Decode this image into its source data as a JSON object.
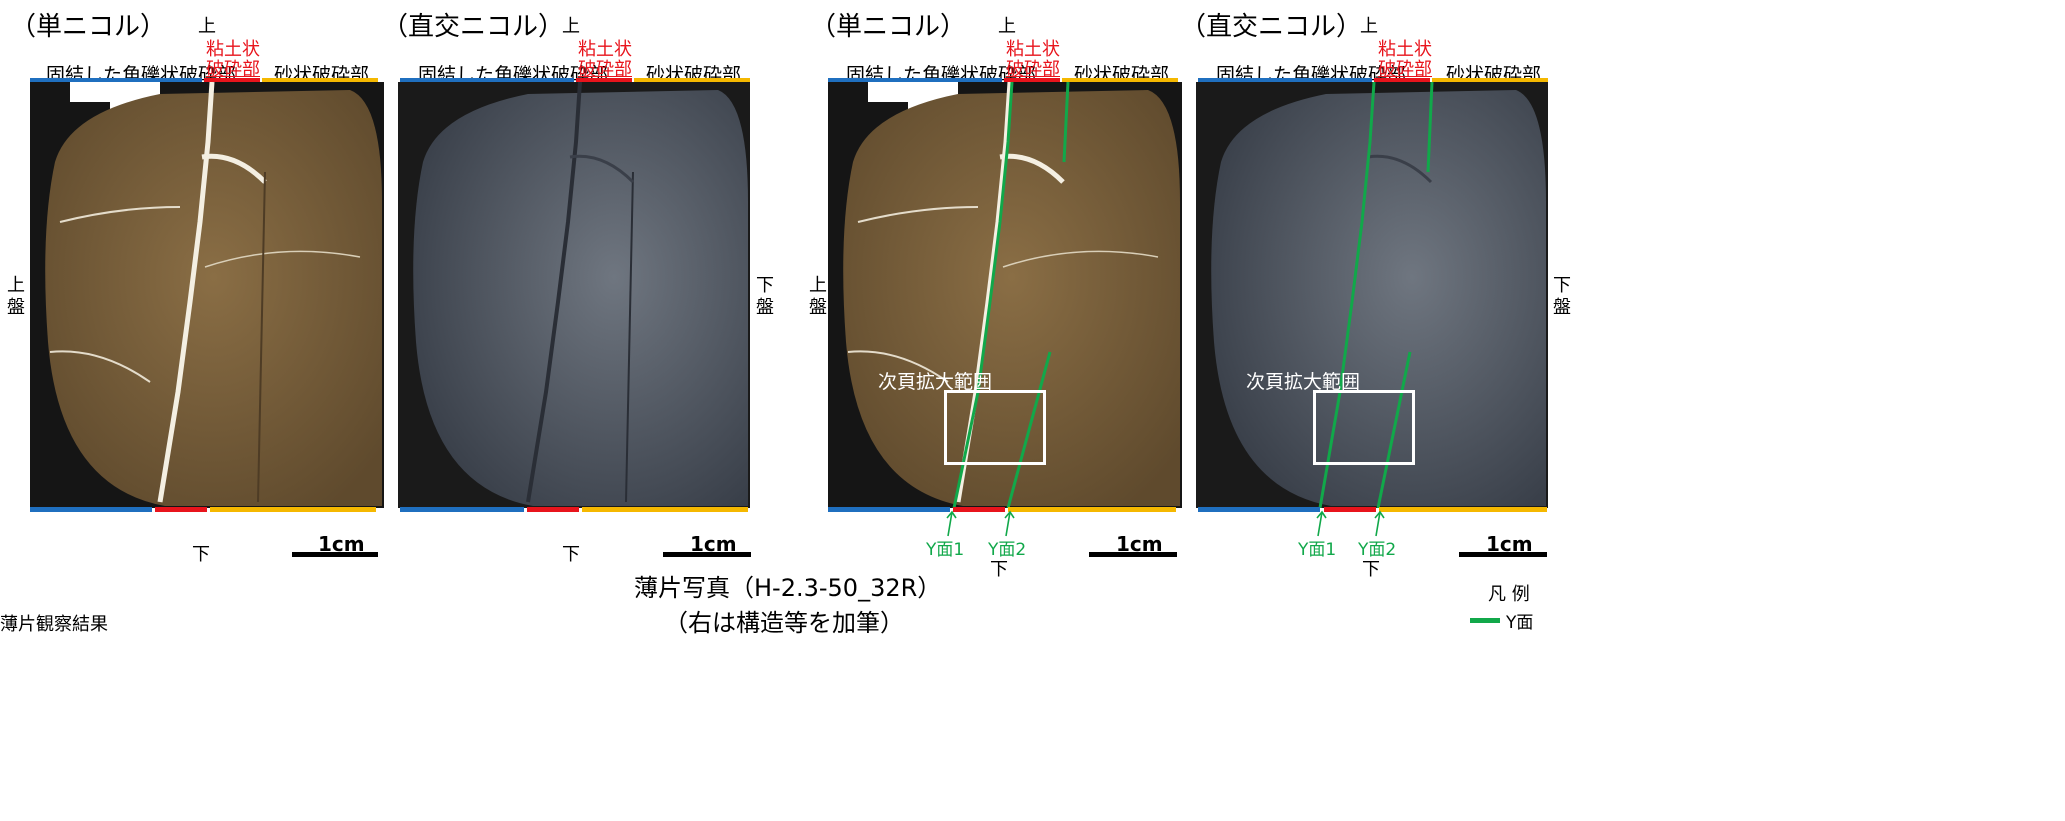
{
  "panels": [
    {
      "mode": "（単ニコル）",
      "top": "上",
      "bottom": "下",
      "left_side": "上盤",
      "right_side": "",
      "zones": {
        "angular": "固結した角礫状破砕部",
        "clay_1": "粘土状",
        "clay_2": "破砕部",
        "sandy": "砂状破砕部"
      },
      "scale": "1cm",
      "photo_style": "plain",
      "annotated": false
    },
    {
      "mode": "（直交ニコル）",
      "top": "上",
      "bottom": "下",
      "left_side": "",
      "right_side": "下盤",
      "zones": {
        "angular": "固結した角礫状破砕部",
        "clay_1": "粘土状",
        "clay_2": "破砕部",
        "sandy": "砂状破砕部"
      },
      "scale": "1cm",
      "photo_style": "crossed",
      "annotated": false
    },
    {
      "mode": "（単ニコル）",
      "top": "上",
      "bottom": "下",
      "left_side": "上盤",
      "right_side": "",
      "zones": {
        "angular": "固結した角礫状破砕部",
        "clay_1": "粘土状",
        "clay_2": "破砕部",
        "sandy": "砂状破砕部"
      },
      "scale": "1cm",
      "photo_style": "plain",
      "annotated": true,
      "zoom_label": "次頁拡大範囲",
      "y1": "Y面1",
      "y2": "Y面2"
    },
    {
      "mode": "（直交ニコル）",
      "top": "上",
      "bottom": "下",
      "left_side": "",
      "right_side": "下盤",
      "zones": {
        "angular": "固結した角礫状破砕部",
        "clay_1": "粘土状",
        "clay_2": "破砕部",
        "sandy": "砂状破砕部"
      },
      "scale": "1cm",
      "photo_style": "crossed",
      "annotated": true,
      "zoom_label": "次頁拡大範囲",
      "y1": "Y面1",
      "y2": "Y面2"
    }
  ],
  "caption": {
    "line1": "薄片写真（H-2.3-50_32R）",
    "line2": "（右は構造等を加筆）"
  },
  "legend": {
    "title": "凡 例",
    "item": "Y面"
  },
  "observation_title": "薄片観察結果",
  "colors": {
    "angular_bar": "#1f6fbf",
    "clay_bar": "#e8141c",
    "sandy_bar": "#f5b800",
    "y_plane": "#11a84a"
  }
}
